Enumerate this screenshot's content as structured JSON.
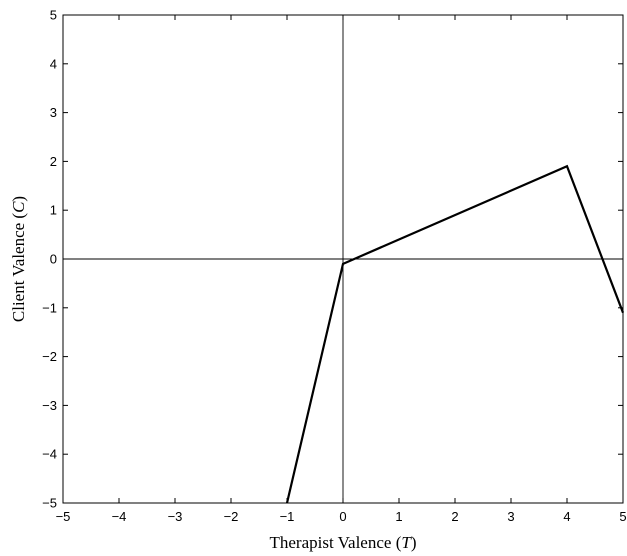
{
  "chart_data": {
    "type": "line",
    "xlabel": "Therapist Valence (",
    "xlabel_var": "T",
    "xlabel_close": ")",
    "ylabel": "Client Valence (",
    "ylabel_var": "C",
    "ylabel_close": ")",
    "xlim": [
      -5,
      5
    ],
    "ylim": [
      -5,
      5
    ],
    "x_ticks": [
      -5,
      -4,
      -3,
      -2,
      -1,
      0,
      1,
      2,
      3,
      4,
      5
    ],
    "y_ticks": [
      -5,
      -4,
      -3,
      -2,
      -1,
      0,
      1,
      2,
      3,
      4,
      5
    ],
    "x_tick_labels": [
      "−5",
      "−4",
      "−3",
      "−2",
      "−1",
      "0",
      "1",
      "2",
      "3",
      "4",
      "5"
    ],
    "y_tick_labels": [
      "−5",
      "−4",
      "−3",
      "−2",
      "−1",
      "0",
      "1",
      "2",
      "3",
      "4",
      "5"
    ],
    "zero_lines": true,
    "grid": false,
    "series": [
      {
        "x": [
          -1,
          0,
          4,
          5
        ],
        "y": [
          -5,
          -0.1,
          1.9,
          -1.1
        ]
      }
    ]
  }
}
